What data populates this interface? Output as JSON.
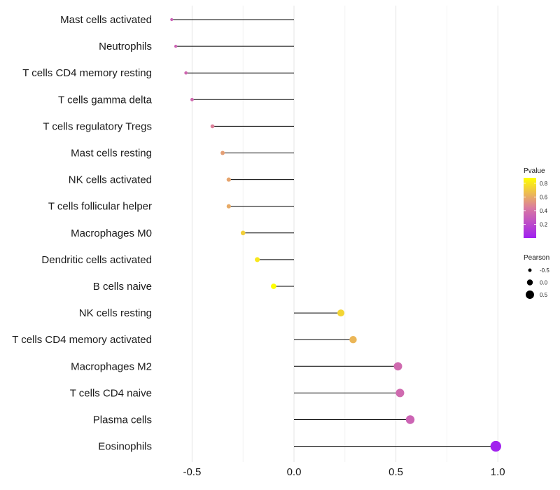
{
  "chart_data": {
    "type": "lollipop",
    "title": "",
    "xlabel": "",
    "ylabel": "",
    "xlim": [
      -0.75,
      1.03
    ],
    "x_ticks": [
      -0.5,
      0.0,
      0.5,
      1.0
    ],
    "x_tick_labels": [
      "-0.5",
      "0.0",
      "0.5",
      "1.0"
    ],
    "x_minor_gridlines": [
      -0.25,
      0.25,
      0.75
    ],
    "grid": true,
    "baseline": 0.0,
    "points": [
      {
        "category": "Mast cells activated",
        "value": -0.6,
        "pvalue": 0.32
      },
      {
        "category": "Neutrophils",
        "value": -0.58,
        "pvalue": 0.33
      },
      {
        "category": "T cells CD4 memory resting",
        "value": -0.53,
        "pvalue": 0.35
      },
      {
        "category": "T cells gamma delta",
        "value": -0.5,
        "pvalue": 0.36
      },
      {
        "category": "T cells regulatory  Tregs ",
        "value": -0.4,
        "pvalue": 0.46
      },
      {
        "category": "Mast cells resting",
        "value": -0.35,
        "pvalue": 0.56
      },
      {
        "category": "NK cells activated",
        "value": -0.32,
        "pvalue": 0.58
      },
      {
        "category": "T cells follicular helper",
        "value": -0.32,
        "pvalue": 0.6
      },
      {
        "category": "Macrophages M0",
        "value": -0.25,
        "pvalue": 0.72
      },
      {
        "category": "Dendritic cells activated",
        "value": -0.18,
        "pvalue": 0.8
      },
      {
        "category": "B cells naive",
        "value": -0.1,
        "pvalue": 0.88
      },
      {
        "category": "NK cells resting",
        "value": 0.23,
        "pvalue": 0.74
      },
      {
        "category": "T cells CD4 memory activated",
        "value": 0.29,
        "pvalue": 0.64
      },
      {
        "category": "Macrophages M2",
        "value": 0.51,
        "pvalue": 0.36
      },
      {
        "category": "T cells CD4 naive",
        "value": 0.52,
        "pvalue": 0.36
      },
      {
        "category": "Plasma cells",
        "value": 0.57,
        "pvalue": 0.33
      },
      {
        "category": "Eosinophils",
        "value": 0.99,
        "pvalue": 0.01
      }
    ],
    "legends": {
      "color": {
        "title": "Pvalue",
        "range": [
          0.0,
          0.88
        ],
        "breaks": [
          0.2,
          0.4,
          0.6,
          0.8
        ],
        "break_labels": [
          "0.2",
          "0.4",
          "0.6",
          "0.8"
        ],
        "low_color": "#a020f0",
        "mid_color": "#da7aa0",
        "high_color": "#ffff00"
      },
      "size": {
        "title": "Pearson",
        "breaks": [
          -0.5,
          0.0,
          0.5
        ],
        "break_labels": [
          "-0.5",
          "0.0",
          "0.5"
        ]
      }
    }
  }
}
